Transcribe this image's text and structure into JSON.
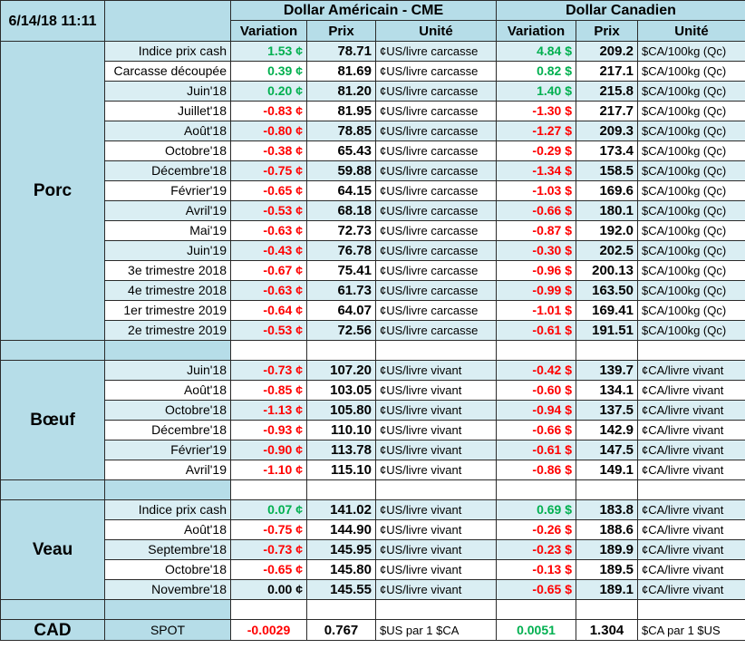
{
  "header": {
    "date": "6/14/18 11:11",
    "usd_group": "Dollar Américain - CME",
    "cad_group": "Dollar Canadien",
    "col_variation": "Variation",
    "col_prix": "Prix",
    "col_unite": "Unité"
  },
  "colors": {
    "positive": "#00b050",
    "negative": "#ff0000",
    "header_bg": "#b6dde8",
    "row_alt_bg": "#daeef3"
  },
  "sections": [
    {
      "name": "Porc",
      "rows": [
        {
          "label": "Indice prix cash",
          "usd_var": "1.53 ¢",
          "usd_var_sign": "pos",
          "usd_price": "78.71",
          "usd_unit": "¢US/livre carcasse",
          "cad_var": "4.84 $",
          "cad_var_sign": "pos",
          "cad_price": "209.2",
          "cad_unit": "$CA/100kg (Qc)"
        },
        {
          "label": "Carcasse découpée",
          "usd_var": "0.39 ¢",
          "usd_var_sign": "pos",
          "usd_price": "81.69",
          "usd_unit": "¢US/livre carcasse",
          "cad_var": "0.82 $",
          "cad_var_sign": "pos",
          "cad_price": "217.1",
          "cad_unit": "$CA/100kg (Qc)"
        },
        {
          "label": "Juin'18",
          "usd_var": "0.20 ¢",
          "usd_var_sign": "pos",
          "usd_price": "81.20",
          "usd_unit": "¢US/livre carcasse",
          "cad_var": "1.40 $",
          "cad_var_sign": "pos",
          "cad_price": "215.8",
          "cad_unit": "$CA/100kg (Qc)"
        },
        {
          "label": "Juillet'18",
          "usd_var": "-0.83 ¢",
          "usd_var_sign": "neg",
          "usd_price": "81.95",
          "usd_unit": "¢US/livre carcasse",
          "cad_var": "-1.30 $",
          "cad_var_sign": "neg",
          "cad_price": "217.7",
          "cad_unit": "$CA/100kg (Qc)"
        },
        {
          "label": "Août'18",
          "usd_var": "-0.80 ¢",
          "usd_var_sign": "neg",
          "usd_price": "78.85",
          "usd_unit": "¢US/livre carcasse",
          "cad_var": "-1.27 $",
          "cad_var_sign": "neg",
          "cad_price": "209.3",
          "cad_unit": "$CA/100kg (Qc)"
        },
        {
          "label": "Octobre'18",
          "usd_var": "-0.38 ¢",
          "usd_var_sign": "neg",
          "usd_price": "65.43",
          "usd_unit": "¢US/livre carcasse",
          "cad_var": "-0.29 $",
          "cad_var_sign": "neg",
          "cad_price": "173.4",
          "cad_unit": "$CA/100kg (Qc)"
        },
        {
          "label": "Décembre'18",
          "usd_var": "-0.75 ¢",
          "usd_var_sign": "neg",
          "usd_price": "59.88",
          "usd_unit": "¢US/livre carcasse",
          "cad_var": "-1.34 $",
          "cad_var_sign": "neg",
          "cad_price": "158.5",
          "cad_unit": "$CA/100kg (Qc)"
        },
        {
          "label": "Février'19",
          "usd_var": "-0.65 ¢",
          "usd_var_sign": "neg",
          "usd_price": "64.15",
          "usd_unit": "¢US/livre carcasse",
          "cad_var": "-1.03 $",
          "cad_var_sign": "neg",
          "cad_price": "169.6",
          "cad_unit": "$CA/100kg (Qc)"
        },
        {
          "label": "Avril'19",
          "usd_var": "-0.53 ¢",
          "usd_var_sign": "neg",
          "usd_price": "68.18",
          "usd_unit": "¢US/livre carcasse",
          "cad_var": "-0.66 $",
          "cad_var_sign": "neg",
          "cad_price": "180.1",
          "cad_unit": "$CA/100kg (Qc)"
        },
        {
          "label": "Mai'19",
          "usd_var": "-0.63 ¢",
          "usd_var_sign": "neg",
          "usd_price": "72.73",
          "usd_unit": "¢US/livre carcasse",
          "cad_var": "-0.87 $",
          "cad_var_sign": "neg",
          "cad_price": "192.0",
          "cad_unit": "$CA/100kg (Qc)"
        },
        {
          "label": "Juin'19",
          "usd_var": "-0.43 ¢",
          "usd_var_sign": "neg",
          "usd_price": "76.78",
          "usd_unit": "¢US/livre carcasse",
          "cad_var": "-0.30 $",
          "cad_var_sign": "neg",
          "cad_price": "202.5",
          "cad_unit": "$CA/100kg (Qc)"
        },
        {
          "label": "3e trimestre 2018",
          "usd_var": "-0.67 ¢",
          "usd_var_sign": "neg",
          "usd_price": "75.41",
          "usd_unit": "¢US/livre carcasse",
          "cad_var": "-0.96 $",
          "cad_var_sign": "neg",
          "cad_price": "200.13",
          "cad_unit": "$CA/100kg (Qc)"
        },
        {
          "label": "4e trimestre 2018",
          "usd_var": "-0.63 ¢",
          "usd_var_sign": "neg",
          "usd_price": "61.73",
          "usd_unit": "¢US/livre carcasse",
          "cad_var": "-0.99 $",
          "cad_var_sign": "neg",
          "cad_price": "163.50",
          "cad_unit": "$CA/100kg (Qc)"
        },
        {
          "label": "1er trimestre 2019",
          "usd_var": "-0.64 ¢",
          "usd_var_sign": "neg",
          "usd_price": "64.07",
          "usd_unit": "¢US/livre carcasse",
          "cad_var": "-1.01 $",
          "cad_var_sign": "neg",
          "cad_price": "169.41",
          "cad_unit": "$CA/100kg (Qc)"
        },
        {
          "label": "2e trimestre 2019",
          "usd_var": "-0.53 ¢",
          "usd_var_sign": "neg",
          "usd_price": "72.56",
          "usd_unit": "¢US/livre carcasse",
          "cad_var": "-0.61 $",
          "cad_var_sign": "neg",
          "cad_price": "191.51",
          "cad_unit": "$CA/100kg (Qc)"
        }
      ]
    },
    {
      "name": "Bœuf",
      "rows": [
        {
          "label": "Juin'18",
          "usd_var": "-0.73 ¢",
          "usd_var_sign": "neg",
          "usd_price": "107.20",
          "usd_unit": "¢US/livre vivant",
          "cad_var": "-0.42 $",
          "cad_var_sign": "neg",
          "cad_price": "139.7",
          "cad_unit": "¢CA/livre vivant"
        },
        {
          "label": "Août'18",
          "usd_var": "-0.85 ¢",
          "usd_var_sign": "neg",
          "usd_price": "103.05",
          "usd_unit": "¢US/livre vivant",
          "cad_var": "-0.60 $",
          "cad_var_sign": "neg",
          "cad_price": "134.1",
          "cad_unit": "¢CA/livre vivant"
        },
        {
          "label": "Octobre'18",
          "usd_var": "-1.13 ¢",
          "usd_var_sign": "neg",
          "usd_price": "105.80",
          "usd_unit": "¢US/livre vivant",
          "cad_var": "-0.94 $",
          "cad_var_sign": "neg",
          "cad_price": "137.5",
          "cad_unit": "¢CA/livre vivant"
        },
        {
          "label": "Décembre'18",
          "usd_var": "-0.93 ¢",
          "usd_var_sign": "neg",
          "usd_price": "110.10",
          "usd_unit": "¢US/livre vivant",
          "cad_var": "-0.66 $",
          "cad_var_sign": "neg",
          "cad_price": "142.9",
          "cad_unit": "¢CA/livre vivant"
        },
        {
          "label": "Février'19",
          "usd_var": "-0.90 ¢",
          "usd_var_sign": "neg",
          "usd_price": "113.78",
          "usd_unit": "¢US/livre vivant",
          "cad_var": "-0.61 $",
          "cad_var_sign": "neg",
          "cad_price": "147.5",
          "cad_unit": "¢CA/livre vivant"
        },
        {
          "label": "Avril'19",
          "usd_var": "-1.10 ¢",
          "usd_var_sign": "neg",
          "usd_price": "115.10",
          "usd_unit": "¢US/livre vivant",
          "cad_var": "-0.86 $",
          "cad_var_sign": "neg",
          "cad_price": "149.1",
          "cad_unit": "¢CA/livre vivant"
        }
      ]
    },
    {
      "name": "Veau",
      "rows": [
        {
          "label": "Indice prix cash",
          "usd_var": "0.07 ¢",
          "usd_var_sign": "pos",
          "usd_price": "141.02",
          "usd_unit": "¢US/livre vivant",
          "cad_var": "0.69 $",
          "cad_var_sign": "pos",
          "cad_price": "183.8",
          "cad_unit": "¢CA/livre vivant"
        },
        {
          "label": "Août'18",
          "usd_var": "-0.75 ¢",
          "usd_var_sign": "neg",
          "usd_price": "144.90",
          "usd_unit": "¢US/livre vivant",
          "cad_var": "-0.26 $",
          "cad_var_sign": "neg",
          "cad_price": "188.6",
          "cad_unit": "¢CA/livre vivant"
        },
        {
          "label": "Septembre'18",
          "usd_var": "-0.73 ¢",
          "usd_var_sign": "neg",
          "usd_price": "145.95",
          "usd_unit": "¢US/livre vivant",
          "cad_var": "-0.23 $",
          "cad_var_sign": "neg",
          "cad_price": "189.9",
          "cad_unit": "¢CA/livre vivant"
        },
        {
          "label": "Octobre'18",
          "usd_var": "-0.65 ¢",
          "usd_var_sign": "neg",
          "usd_price": "145.80",
          "usd_unit": "¢US/livre vivant",
          "cad_var": "-0.13 $",
          "cad_var_sign": "neg",
          "cad_price": "189.5",
          "cad_unit": "¢CA/livre vivant"
        },
        {
          "label": "Novembre'18",
          "usd_var": "0.00 ¢",
          "usd_var_sign": "zero",
          "usd_price": "145.55",
          "usd_unit": "¢US/livre vivant",
          "cad_var": "-0.65 $",
          "cad_var_sign": "neg",
          "cad_price": "189.1",
          "cad_unit": "¢CA/livre vivant"
        }
      ]
    }
  ],
  "cad_row": {
    "name": "CAD",
    "label": "SPOT",
    "usd_var": "-0.0029",
    "usd_var_sign": "neg",
    "usd_price": "0.767",
    "usd_unit": "$US par 1 $CA",
    "cad_var": "0.0051",
    "cad_var_sign": "pos",
    "cad_price": "1.304",
    "cad_unit": "$CA par 1 $US"
  }
}
